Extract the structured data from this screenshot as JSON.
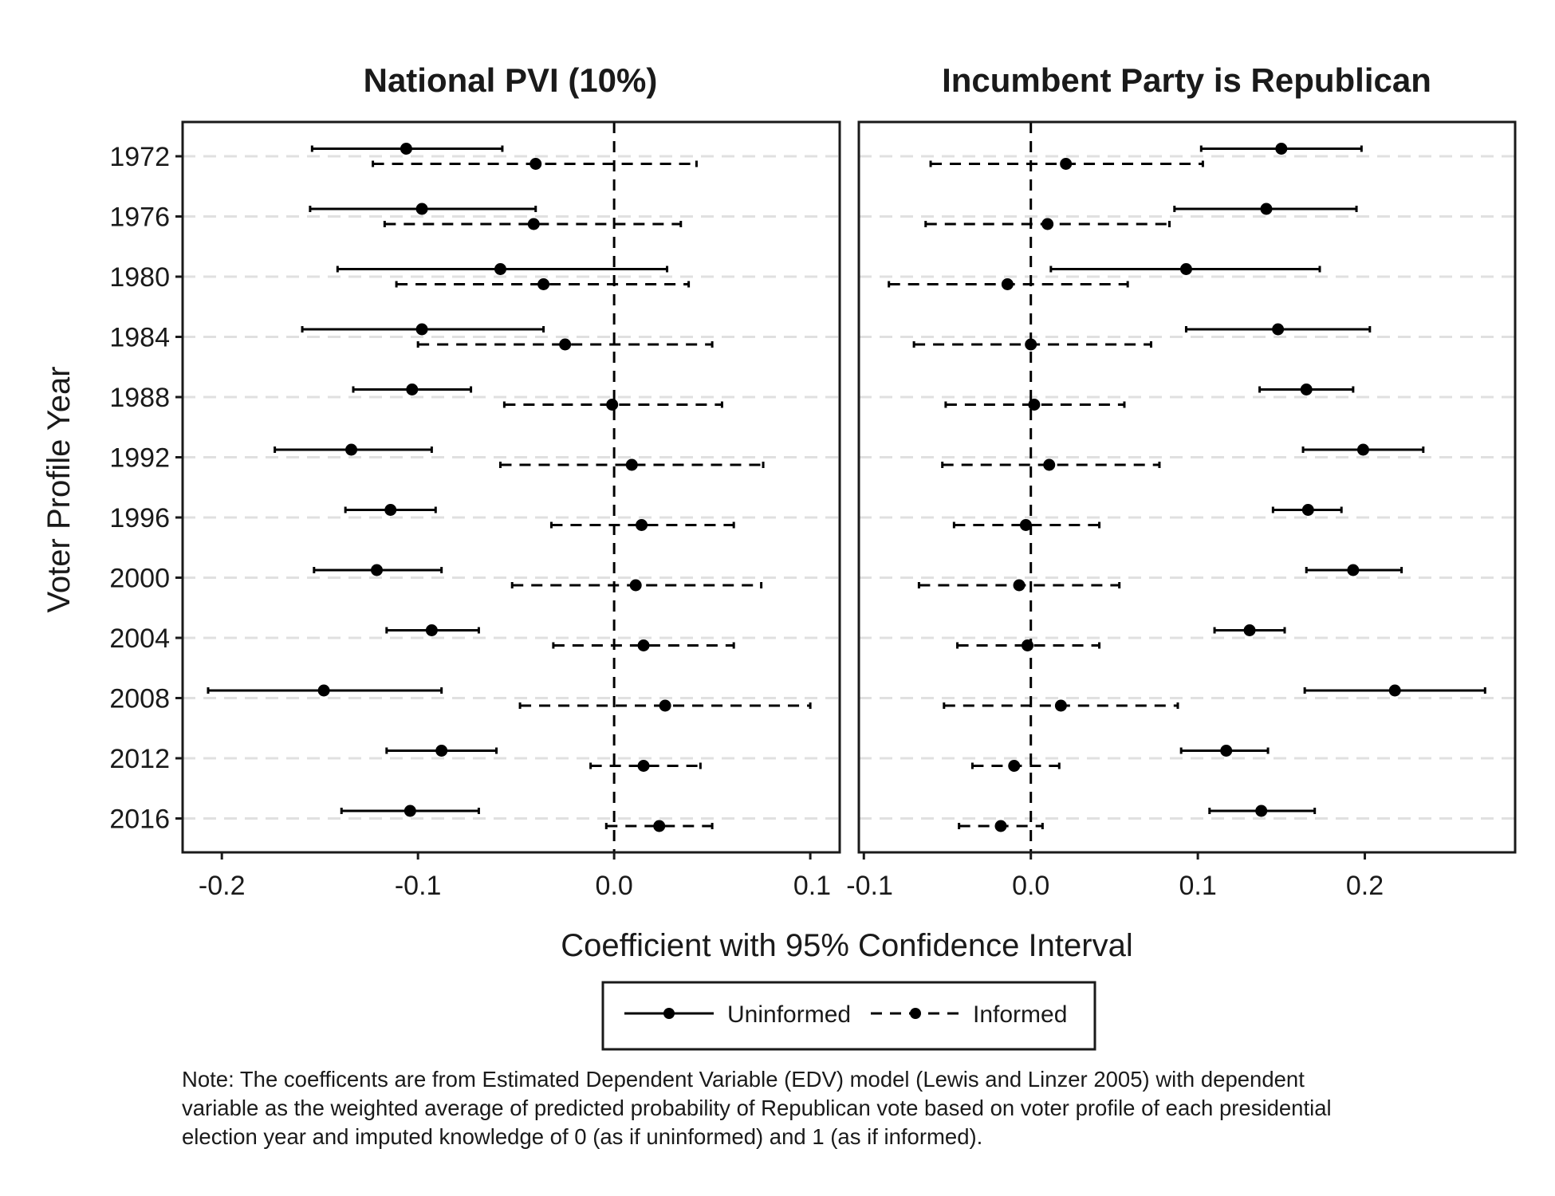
{
  "figure": {
    "xlabel": "Coefficient with 95% Confidence Interval",
    "ylabel": "Voter Profile Year",
    "note": "Note: The coefficents are from Estimated Dependent Variable (EDV) model (Lewis and Linzer 2005) with dependent\nvariable as the weighted average of predicted probability of Republican vote based on voter profile of each presidential\nelection year and imputed knowledge of 0 (as if uninformed) and 1 (as if informed).",
    "legend": {
      "items": [
        {
          "label": "Uninformed",
          "line": "solid"
        },
        {
          "label": "Informed",
          "line": "dashed"
        }
      ]
    },
    "colors": {
      "marks": "#000000",
      "grid": "#e0e0e0",
      "panel_border": "#1a1a1a"
    }
  },
  "chart_data": [
    {
      "type": "scatter",
      "title": "National PVI (10%)",
      "xlabel": "Coefficient with 95% Confidence Interval",
      "ylabel": "Voter Profile Year",
      "categories": [
        "1972",
        "1976",
        "1980",
        "1984",
        "1988",
        "1992",
        "1996",
        "2000",
        "2004",
        "2008",
        "2012",
        "2016"
      ],
      "xlim": [
        -0.22,
        0.115
      ],
      "x_ticks": [
        -0.2,
        -0.1,
        0.0,
        0.1
      ],
      "x_tick_labels": [
        "-0.2",
        "-0.1",
        "0.0",
        "0.1"
      ],
      "reference_line": 0,
      "grid": "horizontal dashed",
      "series": [
        {
          "name": "Uninformed",
          "estimate": [
            -0.106,
            -0.098,
            -0.058,
            -0.098,
            -0.103,
            -0.134,
            -0.114,
            -0.121,
            -0.093,
            -0.148,
            -0.088,
            -0.104
          ],
          "lower": [
            -0.154,
            -0.155,
            -0.141,
            -0.159,
            -0.133,
            -0.173,
            -0.137,
            -0.153,
            -0.116,
            -0.207,
            -0.116,
            -0.139
          ],
          "upper": [
            -0.057,
            -0.04,
            0.027,
            -0.036,
            -0.073,
            -0.093,
            -0.091,
            -0.088,
            -0.069,
            -0.088,
            -0.06,
            -0.069
          ]
        },
        {
          "name": "Informed",
          "estimate": [
            -0.04,
            -0.041,
            -0.036,
            -0.025,
            -0.001,
            0.009,
            0.014,
            0.011,
            0.015,
            0.026,
            0.015,
            0.023
          ],
          "lower": [
            -0.123,
            -0.117,
            -0.111,
            -0.1,
            -0.056,
            -0.058,
            -0.032,
            -0.052,
            -0.031,
            -0.048,
            -0.012,
            -0.004
          ],
          "upper": [
            0.042,
            0.034,
            0.038,
            0.05,
            0.055,
            0.076,
            0.061,
            0.075,
            0.061,
            0.1,
            0.044,
            0.05
          ]
        }
      ]
    },
    {
      "type": "scatter",
      "title": "Incumbent Party is Republican",
      "xlabel": "Coefficient with 95% Confidence Interval",
      "ylabel": "",
      "categories": [
        "1972",
        "1976",
        "1980",
        "1984",
        "1988",
        "1992",
        "1996",
        "2000",
        "2004",
        "2008",
        "2012",
        "2016"
      ],
      "xlim": [
        -0.103,
        0.29
      ],
      "x_ticks": [
        -0.1,
        0.0,
        0.1,
        0.2
      ],
      "x_tick_labels": [
        "-0.1",
        "0.0",
        "0.1",
        "0.2"
      ],
      "reference_line": 0,
      "grid": "horizontal dashed",
      "series": [
        {
          "name": "Uninformed",
          "estimate": [
            0.15,
            0.141,
            0.093,
            0.148,
            0.165,
            0.199,
            0.166,
            0.193,
            0.131,
            0.218,
            0.117,
            0.138
          ],
          "lower": [
            0.102,
            0.086,
            0.012,
            0.093,
            0.137,
            0.163,
            0.145,
            0.165,
            0.11,
            0.164,
            0.09,
            0.107
          ],
          "upper": [
            0.198,
            0.195,
            0.173,
            0.203,
            0.193,
            0.235,
            0.186,
            0.222,
            0.152,
            0.272,
            0.142,
            0.17
          ]
        },
        {
          "name": "Informed",
          "estimate": [
            0.021,
            0.01,
            -0.014,
            0.0,
            0.002,
            0.011,
            -0.003,
            -0.007,
            -0.002,
            0.018,
            -0.01,
            -0.018
          ],
          "lower": [
            -0.06,
            -0.063,
            -0.085,
            -0.07,
            -0.051,
            -0.053,
            -0.046,
            -0.067,
            -0.044,
            -0.052,
            -0.035,
            -0.043
          ],
          "upper": [
            0.103,
            0.083,
            0.058,
            0.072,
            0.056,
            0.077,
            0.041,
            0.053,
            0.041,
            0.088,
            0.017,
            0.007
          ]
        }
      ]
    }
  ]
}
